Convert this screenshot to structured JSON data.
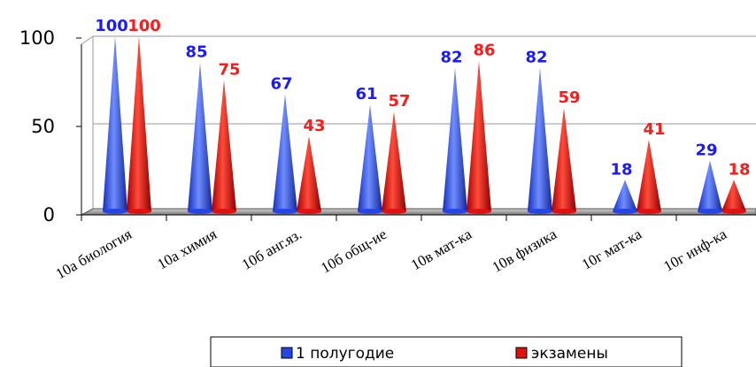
{
  "chart_data": {
    "type": "bar",
    "bar_shape": "cone",
    "categories": [
      "10а биология",
      "10а химия",
      "10б анг.яз.",
      "10б общ-ие",
      "10в мат-ка",
      "10в физика",
      "10г мат-ка",
      "10г инф-ка"
    ],
    "series": [
      {
        "name": "1 полугодие",
        "values": [
          100,
          85,
          67,
          61,
          82,
          82,
          18,
          29
        ],
        "color": "#2545e8",
        "label_color": "#1a1aff"
      },
      {
        "name": "экзамены",
        "values": [
          100,
          75,
          43,
          57,
          86,
          59,
          41,
          18
        ],
        "color": "#e01010",
        "label_color": "#ff1a1a"
      }
    ],
    "y_ticks": [
      "0",
      "50",
      "100"
    ],
    "ylim": [
      0,
      100
    ],
    "grid": true,
    "legend_position": "bottom-right",
    "data_labels": true
  }
}
